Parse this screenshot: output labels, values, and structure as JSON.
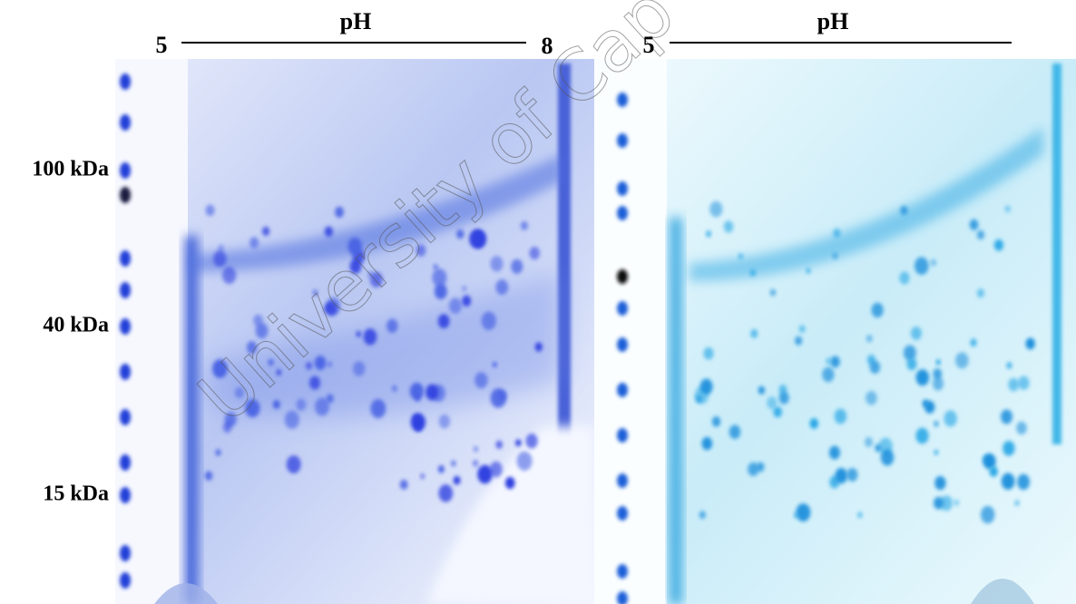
{
  "gels": {
    "left": {
      "start": "5",
      "axis": "pH",
      "end": "8"
    },
    "right": {
      "start": "5",
      "axis": "pH"
    }
  },
  "markers": [
    "100 kDa",
    "40 kDa",
    "15 kDa"
  ],
  "watermark": "University of Cap"
}
